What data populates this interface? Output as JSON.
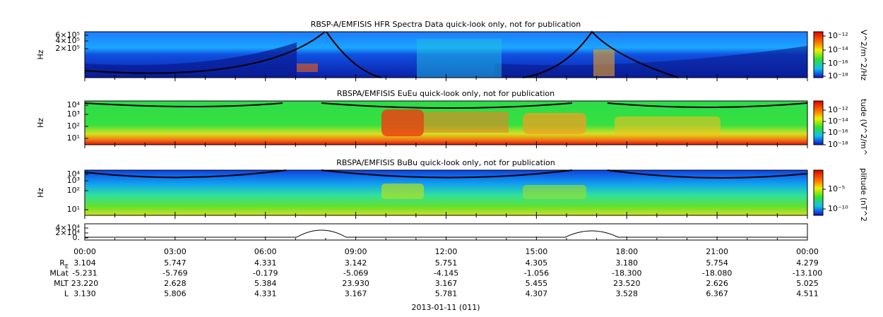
{
  "panels": [
    {
      "title": "RBSP-A/EMFISIS  HFR Spectra Data quick-look only, not for publication",
      "ylabel": "Hz",
      "yticks": [
        "6×10⁵",
        "4×10⁵",
        "2×10⁵"
      ],
      "cbar_label": "V^2/m^2/Hz",
      "cbar_ticks": [
        "10⁻¹²",
        "10⁻¹⁴",
        "10⁻¹⁶",
        "10⁻¹⁸"
      ]
    },
    {
      "title": "RBSPA/EMFISIS  EuEu quick-look only, not for publication",
      "ylabel": "Hz",
      "yticks": [
        "10⁴",
        "10³",
        "10²",
        "10¹"
      ],
      "cbar_label": "tude (V^2/m^",
      "cbar_ticks": [
        "10⁻¹²",
        "10⁻¹⁴",
        "10⁻¹⁶",
        "10⁻¹⁸"
      ]
    },
    {
      "title": "RBSPA/EMFISIS  BuBu quick-look only, not for publication",
      "ylabel": "Hz",
      "yticks": [
        "10⁴",
        "10³",
        "10²",
        "10¹"
      ],
      "cbar_label": "plitude (nT^2",
      "cbar_ticks": [
        "10⁻⁵",
        "10⁻¹⁰"
      ]
    },
    {
      "yticks": [
        "4×10⁴",
        "2×10⁴",
        "0."
      ]
    }
  ],
  "times": [
    "00:00",
    "03:00",
    "06:00",
    "09:00",
    "12:00",
    "15:00",
    "18:00",
    "21:00",
    "00:00"
  ],
  "ephemeris": [
    {
      "label": "R",
      "label_sub": "E",
      "values": [
        "3.104",
        "5.747",
        "4.331",
        "3.142",
        "5.751",
        "4.305",
        "3.180",
        "5.754",
        "4.279"
      ]
    },
    {
      "label": "MLat",
      "values": [
        "-5.231",
        "-5.769",
        "-0.179",
        "-5.069",
        "-4.145",
        "-1.056",
        "-18.300",
        "-18.080",
        "-13.100"
      ]
    },
    {
      "label": "MLT",
      "values": [
        "23.220",
        "2.628",
        "5.384",
        "23.930",
        "3.167",
        "5.455",
        "23.520",
        "2.626",
        "5.025"
      ]
    },
    {
      "label": "L",
      "values": [
        "3.130",
        "5.806",
        "4.331",
        "3.167",
        "5.781",
        "4.307",
        "3.528",
        "6.367",
        "4.511"
      ]
    }
  ],
  "date": "2013-01-11 (011)"
}
